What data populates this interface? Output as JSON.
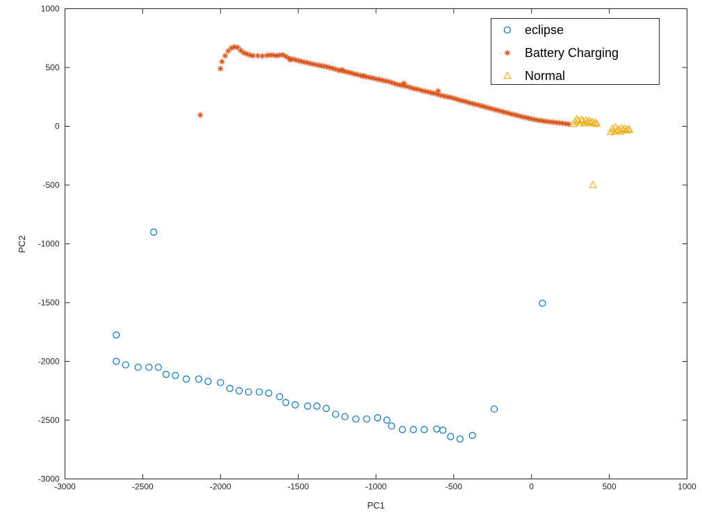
{
  "chart_data": {
    "type": "scatter",
    "title": "",
    "xlabel": "PC1",
    "ylabel": "PC2",
    "xlim": [
      -3000,
      1000
    ],
    "ylim": [
      -3000,
      1000
    ],
    "xticks": [
      -3000,
      -2500,
      -2000,
      -1500,
      -1000,
      -500,
      0,
      500,
      1000
    ],
    "yticks": [
      -3000,
      -2500,
      -2000,
      -1500,
      -1000,
      -500,
      0,
      500,
      1000
    ],
    "grid": false,
    "legend_position": "top-right",
    "series": [
      {
        "name": "eclipse",
        "marker": "circle",
        "color": "#0072BD",
        "points": [
          [
            -2670,
            -1775
          ],
          [
            -2430,
            -900
          ],
          [
            70,
            -1505
          ],
          [
            -240,
            -2405
          ],
          [
            -2670,
            -2000
          ],
          [
            -2610,
            -2030
          ],
          [
            -2530,
            -2050
          ],
          [
            -2460,
            -2050
          ],
          [
            -2400,
            -2050
          ],
          [
            -2350,
            -2110
          ],
          [
            -2290,
            -2120
          ],
          [
            -2220,
            -2150
          ],
          [
            -2140,
            -2150
          ],
          [
            -2080,
            -2170
          ],
          [
            -2000,
            -2180
          ],
          [
            -1940,
            -2230
          ],
          [
            -1880,
            -2250
          ],
          [
            -1820,
            -2260
          ],
          [
            -1750,
            -2260
          ],
          [
            -1690,
            -2270
          ],
          [
            -1620,
            -2300
          ],
          [
            -1580,
            -2350
          ],
          [
            -1520,
            -2370
          ],
          [
            -1440,
            -2380
          ],
          [
            -1380,
            -2380
          ],
          [
            -1320,
            -2400
          ],
          [
            -1260,
            -2450
          ],
          [
            -1200,
            -2470
          ],
          [
            -1130,
            -2490
          ],
          [
            -1060,
            -2490
          ],
          [
            -990,
            -2480
          ],
          [
            -930,
            -2500
          ],
          [
            -900,
            -2550
          ],
          [
            -830,
            -2580
          ],
          [
            -760,
            -2580
          ],
          [
            -690,
            -2580
          ],
          [
            -610,
            -2575
          ],
          [
            -570,
            -2585
          ],
          [
            -520,
            -2640
          ],
          [
            -460,
            -2660
          ],
          [
            -380,
            -2630
          ]
        ]
      },
      {
        "name": "Battery Charging",
        "marker": "asterisk",
        "color": "#D95319",
        "points": [
          [
            -2130,
            95
          ],
          [
            -2000,
            490
          ],
          [
            -1990,
            550
          ],
          [
            -1970,
            600
          ],
          [
            -1950,
            640
          ],
          [
            -1930,
            665
          ],
          [
            -1910,
            675
          ],
          [
            -1890,
            670
          ],
          [
            -1870,
            645
          ],
          [
            -1850,
            625
          ],
          [
            -1830,
            615
          ],
          [
            -1810,
            605
          ],
          [
            -1790,
            600
          ],
          [
            -1760,
            600
          ],
          [
            -1730,
            598
          ],
          [
            -1700,
            602
          ],
          [
            -1680,
            606
          ],
          [
            -1660,
            604
          ],
          [
            -1640,
            600
          ],
          [
            -1620,
            605
          ],
          [
            -1600,
            608
          ],
          [
            -1580,
            594
          ],
          [
            -1560,
            578
          ],
          [
            -1540,
            572
          ],
          [
            -1520,
            566
          ],
          [
            -1500,
            558
          ],
          [
            -1480,
            552
          ],
          [
            -1460,
            546
          ],
          [
            -1440,
            540
          ],
          [
            -1420,
            533
          ],
          [
            -1400,
            527
          ],
          [
            -1380,
            522
          ],
          [
            -1360,
            516
          ],
          [
            -1340,
            512
          ],
          [
            -1320,
            507
          ],
          [
            -1300,
            500
          ],
          [
            -1280,
            493
          ],
          [
            -1260,
            485
          ],
          [
            -1240,
            476
          ],
          [
            -1220,
            472
          ],
          [
            -1200,
            466
          ],
          [
            -1180,
            460
          ],
          [
            -1160,
            453
          ],
          [
            -1140,
            445
          ],
          [
            -1120,
            440
          ],
          [
            -1100,
            432
          ],
          [
            -1080,
            425
          ],
          [
            -1060,
            420
          ],
          [
            -1040,
            415
          ],
          [
            -1020,
            410
          ],
          [
            -1000,
            403
          ],
          [
            -980,
            398
          ],
          [
            -960,
            392
          ],
          [
            -940,
            385
          ],
          [
            -920,
            380
          ],
          [
            -900,
            372
          ],
          [
            -880,
            363
          ],
          [
            -860,
            355
          ],
          [
            -840,
            350
          ],
          [
            -820,
            343
          ],
          [
            -800,
            338
          ],
          [
            -780,
            330
          ],
          [
            -760,
            322
          ],
          [
            -740,
            316
          ],
          [
            -720,
            310
          ],
          [
            -700,
            302
          ],
          [
            -680,
            296
          ],
          [
            -660,
            291
          ],
          [
            -640,
            284
          ],
          [
            -620,
            278
          ],
          [
            -600,
            270
          ],
          [
            -580,
            262
          ],
          [
            -560,
            256
          ],
          [
            -540,
            250
          ],
          [
            -520,
            245
          ],
          [
            -500,
            238
          ],
          [
            -480,
            230
          ],
          [
            -460,
            222
          ],
          [
            -440,
            215
          ],
          [
            -420,
            208
          ],
          [
            -400,
            200
          ],
          [
            -380,
            193
          ],
          [
            -360,
            186
          ],
          [
            -340,
            180
          ],
          [
            -320,
            172
          ],
          [
            -300,
            165
          ],
          [
            -280,
            158
          ],
          [
            -260,
            150
          ],
          [
            -240,
            143
          ],
          [
            -220,
            136
          ],
          [
            -200,
            129
          ],
          [
            -180,
            122
          ],
          [
            -160,
            115
          ],
          [
            -140,
            108
          ],
          [
            -120,
            101
          ],
          [
            -100,
            95
          ],
          [
            -80,
            88
          ],
          [
            -60,
            81
          ],
          [
            -40,
            75
          ],
          [
            -20,
            69
          ],
          [
            0,
            63
          ],
          [
            20,
            57
          ],
          [
            40,
            52
          ],
          [
            60,
            48
          ],
          [
            80,
            44
          ],
          [
            100,
            40
          ],
          [
            120,
            37
          ],
          [
            140,
            34
          ],
          [
            160,
            31
          ],
          [
            180,
            28
          ],
          [
            200,
            25
          ],
          [
            220,
            22
          ],
          [
            240,
            18
          ],
          [
            -1550,
            565
          ],
          [
            -1220,
            480
          ],
          [
            -1080,
            430
          ],
          [
            -820,
            365
          ],
          [
            -600,
            300
          ]
        ]
      },
      {
        "name": "Normal",
        "marker": "triangle",
        "color": "#EDB120",
        "points": [
          [
            395,
            -500
          ],
          [
            270,
            20
          ],
          [
            280,
            40
          ],
          [
            290,
            60
          ],
          [
            300,
            50
          ],
          [
            310,
            30
          ],
          [
            320,
            55
          ],
          [
            330,
            45
          ],
          [
            340,
            25
          ],
          [
            350,
            50
          ],
          [
            360,
            35
          ],
          [
            370,
            45
          ],
          [
            380,
            30
          ],
          [
            390,
            40
          ],
          [
            400,
            25
          ],
          [
            410,
            30
          ],
          [
            420,
            20
          ],
          [
            510,
            -50
          ],
          [
            520,
            -20
          ],
          [
            530,
            -40
          ],
          [
            540,
            -10
          ],
          [
            550,
            -35
          ],
          [
            560,
            -25
          ],
          [
            570,
            -45
          ],
          [
            580,
            -15
          ],
          [
            590,
            -30
          ],
          [
            600,
            -20
          ],
          [
            610,
            -35
          ],
          [
            620,
            -25
          ],
          [
            630,
            -30
          ]
        ]
      }
    ]
  }
}
